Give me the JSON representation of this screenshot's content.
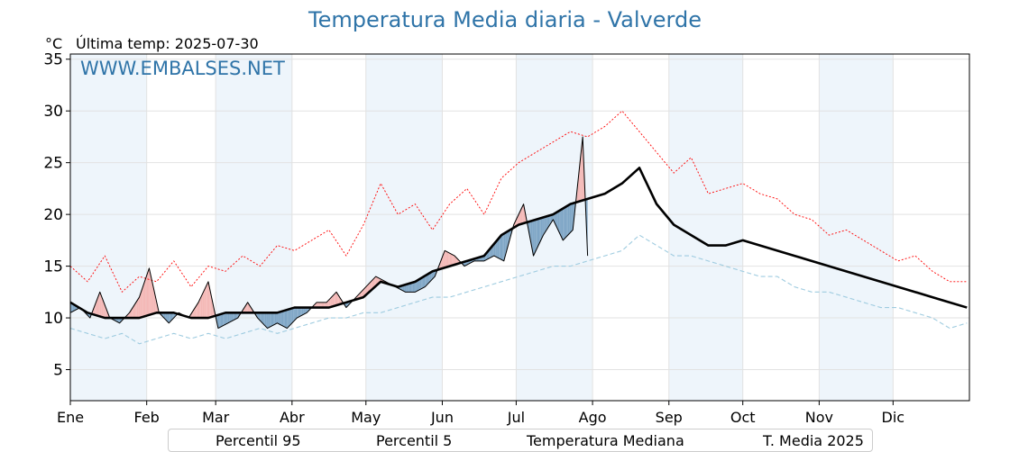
{
  "header": {
    "title": "Temperatura Media diaria - Valverde",
    "unit_label": "°C",
    "last_temp": "Última temp: 2025-07-30",
    "watermark": "WWW.EMBALSES.NET"
  },
  "legend": {
    "items": [
      {
        "label": "Percentil 95",
        "color": "#ff0000",
        "style": "dotted"
      },
      {
        "label": "Percentil 5",
        "color": "#9fcce0",
        "style": "dashed"
      },
      {
        "label": "Temperatura Mediana",
        "color": "#000000",
        "style": "solid-thick"
      },
      {
        "label": "T. Media 2025",
        "color": "#000000",
        "style": "solid-thin"
      }
    ]
  },
  "chart_data": {
    "type": "line",
    "title": "Temperatura Media diaria - Valverde",
    "ylabel": "°C",
    "ylim": [
      2,
      35.5
    ],
    "yticks": [
      5,
      10,
      15,
      20,
      25,
      30,
      35
    ],
    "x_months": [
      "Ene",
      "Feb",
      "Mar",
      "Abr",
      "May",
      "Jun",
      "Jul",
      "Ago",
      "Sep",
      "Oct",
      "Nov",
      "Dic"
    ],
    "month_start_days": [
      1,
      32,
      60,
      91,
      121,
      152,
      182,
      213,
      244,
      274,
      305,
      335
    ],
    "grid": true,
    "legend_position": "bottom",
    "colors": {
      "above_median_fill": "#f4b8b6",
      "below_median_fill": "#7fa6c6",
      "shade_band": "#eef5fb"
    },
    "series": [
      {
        "name": "Percentil 95",
        "days": [
          1,
          8,
          15,
          22,
          29,
          36,
          43,
          50,
          57,
          64,
          71,
          78,
          85,
          92,
          99,
          106,
          113,
          120,
          127,
          134,
          141,
          148,
          155,
          162,
          169,
          176,
          183,
          190,
          197,
          204,
          211,
          218,
          225,
          232,
          239,
          246,
          253,
          260,
          267,
          274,
          281,
          288,
          295,
          302,
          309,
          316,
          323,
          330,
          337,
          344,
          351,
          358,
          365
        ],
        "values": [
          15.0,
          13.5,
          16.0,
          12.5,
          14.0,
          13.5,
          15.5,
          13.0,
          15.0,
          14.5,
          16.0,
          15.0,
          17.0,
          16.5,
          17.5,
          18.5,
          16.0,
          19.0,
          23.0,
          20.0,
          21.0,
          18.5,
          21.0,
          22.5,
          20.0,
          23.5,
          25.0,
          26.0,
          27.0,
          28.0,
          27.5,
          28.5,
          30.0,
          28.0,
          26.0,
          24.0,
          25.5,
          22.0,
          22.5,
          23.0,
          22.0,
          21.5,
          20.0,
          19.5,
          18.0,
          18.5,
          17.5,
          16.5,
          15.5,
          16.0,
          14.5,
          13.5,
          13.5
        ]
      },
      {
        "name": "Percentil 5",
        "days": [
          1,
          8,
          15,
          22,
          29,
          36,
          43,
          50,
          57,
          64,
          71,
          78,
          85,
          92,
          99,
          106,
          113,
          120,
          127,
          134,
          141,
          148,
          155,
          162,
          169,
          176,
          183,
          190,
          197,
          204,
          211,
          218,
          225,
          232,
          239,
          246,
          253,
          260,
          267,
          274,
          281,
          288,
          295,
          302,
          309,
          316,
          323,
          330,
          337,
          344,
          351,
          358,
          365
        ],
        "values": [
          9.0,
          8.5,
          8.0,
          8.5,
          7.5,
          8.0,
          8.5,
          8.0,
          8.5,
          8.0,
          8.5,
          9.0,
          8.5,
          9.0,
          9.5,
          10.0,
          10.0,
          10.5,
          10.5,
          11.0,
          11.5,
          12.0,
          12.0,
          12.5,
          13.0,
          13.5,
          14.0,
          14.5,
          15.0,
          15.0,
          15.5,
          16.0,
          16.5,
          18.0,
          17.0,
          16.0,
          16.0,
          15.5,
          15.0,
          14.5,
          14.0,
          14.0,
          13.0,
          12.5,
          12.5,
          12.0,
          11.5,
          11.0,
          11.0,
          10.5,
          10.0,
          9.0,
          9.5
        ]
      },
      {
        "name": "Temperatura Mediana",
        "days": [
          1,
          8,
          15,
          22,
          29,
          36,
          43,
          50,
          57,
          64,
          71,
          78,
          85,
          92,
          99,
          106,
          113,
          120,
          127,
          134,
          141,
          148,
          155,
          162,
          169,
          176,
          183,
          190,
          197,
          204,
          211,
          218,
          225,
          232,
          239,
          246,
          253,
          260,
          267,
          274,
          281,
          288,
          295,
          302,
          309,
          316,
          323,
          330,
          337,
          344,
          351,
          358,
          365
        ],
        "values": [
          11.5,
          10.5,
          10.0,
          10.0,
          10.0,
          10.5,
          10.5,
          10.0,
          10.0,
          10.5,
          10.5,
          10.5,
          10.5,
          11.0,
          11.0,
          11.0,
          11.5,
          12.0,
          13.5,
          13.0,
          13.5,
          14.5,
          15.0,
          15.5,
          16.0,
          18.0,
          19.0,
          19.5,
          20.0,
          21.0,
          21.5,
          22.0,
          23.0,
          24.5,
          21.0,
          19.0,
          18.0,
          17.0,
          17.0,
          17.5,
          17.0,
          16.5,
          16.0,
          15.5,
          15.0,
          14.5,
          14.0,
          13.5,
          13.0,
          12.5,
          12.0,
          11.5,
          11.0
        ]
      },
      {
        "name": "T. Media 2025",
        "days": [
          1,
          5,
          9,
          13,
          17,
          21,
          25,
          29,
          33,
          37,
          41,
          45,
          49,
          53,
          57,
          61,
          65,
          69,
          73,
          77,
          81,
          85,
          89,
          93,
          97,
          101,
          105,
          109,
          113,
          117,
          121,
          125,
          129,
          133,
          137,
          141,
          145,
          149,
          153,
          157,
          161,
          165,
          169,
          173,
          177,
          181,
          185,
          189,
          193,
          197,
          201,
          205,
          209,
          211
        ],
        "values": [
          10.5,
          11.0,
          10.0,
          12.5,
          10.0,
          9.5,
          10.5,
          12.0,
          14.8,
          10.5,
          9.5,
          10.5,
          10.0,
          11.5,
          13.5,
          9.0,
          9.5,
          10.0,
          11.5,
          10.0,
          9.0,
          9.5,
          9.0,
          10.0,
          10.5,
          11.5,
          11.5,
          12.5,
          11.0,
          12.0,
          13.0,
          14.0,
          13.5,
          13.0,
          12.5,
          12.5,
          13.0,
          14.0,
          16.5,
          16.0,
          15.0,
          15.5,
          15.5,
          16.0,
          15.5,
          19.0,
          21.0,
          16.0,
          18.0,
          19.5,
          17.5,
          18.5,
          27.5,
          16.0
        ]
      }
    ]
  }
}
